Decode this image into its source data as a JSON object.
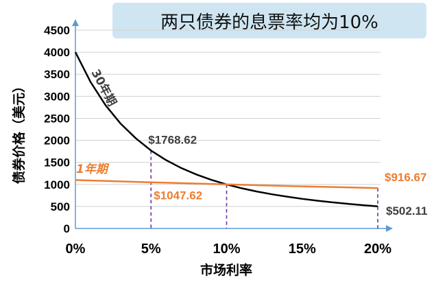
{
  "chart_data": {
    "type": "line",
    "title": "两只债券的息票率均为10%",
    "xlabel": "市场利率",
    "ylabel": "债券价格（美元）",
    "xlim": [
      0,
      20
    ],
    "ylim": [
      0,
      4500
    ],
    "x_ticks": [
      "0%",
      "5%",
      "10%",
      "15%",
      "20%"
    ],
    "x_tick_values": [
      0,
      5,
      10,
      15,
      20
    ],
    "y_ticks": [
      "0",
      "500",
      "1000",
      "1500",
      "2000",
      "2500",
      "3000",
      "3500",
      "4000",
      "4500"
    ],
    "y_tick_values": [
      0,
      500,
      1000,
      1500,
      2000,
      2500,
      3000,
      3500,
      4000,
      4500
    ],
    "grid": "horizontal",
    "series": [
      {
        "name": "30年期",
        "color": "#000000",
        "x": [
          0,
          1,
          2,
          3,
          4,
          5,
          6,
          7,
          8,
          9,
          10,
          11,
          12,
          13,
          14,
          15,
          16,
          17,
          18,
          19,
          20
        ],
        "values": [
          4000,
          3324,
          2794,
          2376,
          2044,
          1768.62,
          1551,
          1372,
          1225,
          1103,
          1000,
          913,
          839,
          776,
          722,
          672,
          630,
          593,
          560,
          530,
          502.11
        ]
      },
      {
        "name": "1年期",
        "color": "#ed7d31",
        "x": [
          0,
          5,
          10,
          15,
          20
        ],
        "values": [
          1100,
          1047.62,
          1000,
          956.52,
          916.67
        ]
      }
    ],
    "annotations": [
      {
        "text": "$1768.62",
        "color": "#404040",
        "x": 5,
        "y": 1768.62
      },
      {
        "text": "$1047.62",
        "color": "#ed7d31",
        "x": 5,
        "y": 1047.62
      },
      {
        "text": "$916.67",
        "color": "#ed7d31",
        "x": 20,
        "y": 916.67
      },
      {
        "text": "$502.11",
        "color": "#404040",
        "x": 20,
        "y": 502.11
      }
    ],
    "reference_lines": {
      "color": "#7030a0",
      "points": [
        {
          "x": 5,
          "y": 1768.62
        },
        {
          "x": 10,
          "y": 1000
        },
        {
          "x": 20,
          "y": 916.67
        }
      ]
    }
  }
}
